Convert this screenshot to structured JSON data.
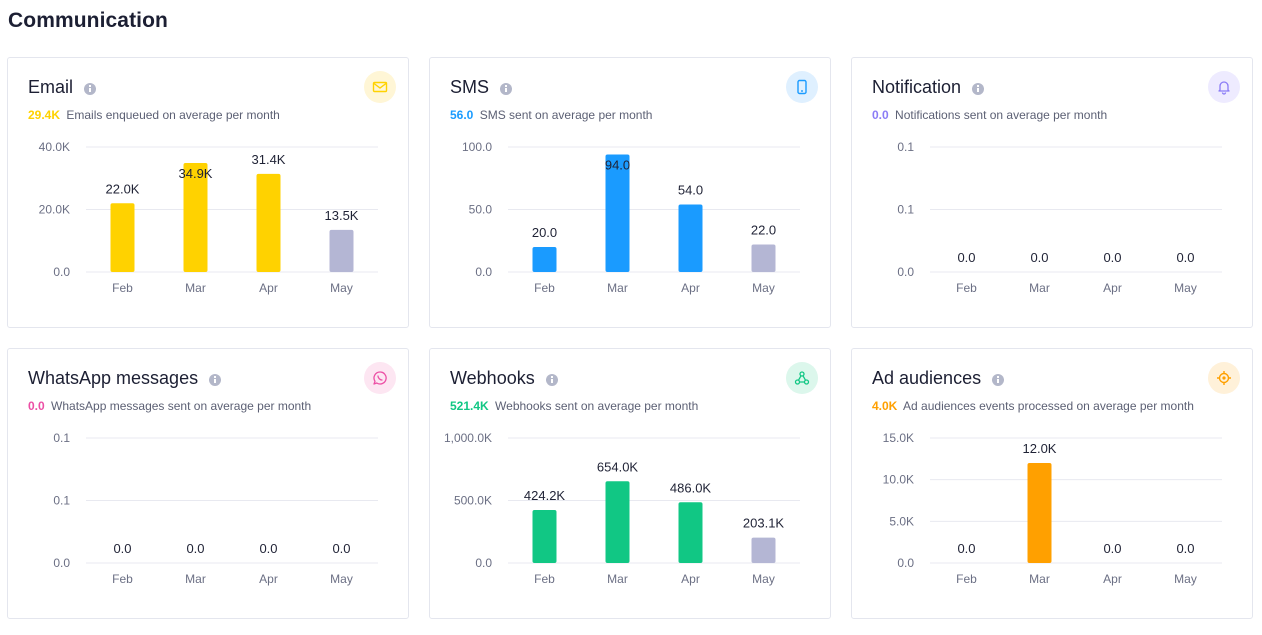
{
  "page": {
    "title": "Communication"
  },
  "cards": [
    {
      "title": "Email",
      "icon": "envelope-icon",
      "accent": "#ffd200",
      "badge_bg": "#fff6d6",
      "summary_value": "29.4K",
      "summary_text": "Emails enqueued on average per month",
      "chart_data": {
        "type": "bar",
        "categories": [
          "Feb",
          "Mar",
          "Apr",
          "May"
        ],
        "values": [
          22000,
          34900,
          31400,
          13500
        ],
        "labels": [
          "22.0K",
          "34.9K",
          "31.4K",
          "13.5K"
        ],
        "ylim": [
          0,
          40000
        ],
        "yticks": [
          "0.0",
          "20.0K",
          "40.0K"
        ],
        "bar_colors": [
          "#ffd200",
          "#ffd200",
          "#ffd200",
          "#b4b6d4"
        ]
      }
    },
    {
      "title": "SMS",
      "icon": "mobile-phone-icon",
      "accent": "#1a9bff",
      "badge_bg": "#dff0ff",
      "summary_value": "56.0",
      "summary_text": "SMS sent on average per month",
      "chart_data": {
        "type": "bar",
        "categories": [
          "Feb",
          "Mar",
          "Apr",
          "May"
        ],
        "values": [
          20,
          94,
          54,
          22
        ],
        "labels": [
          "20.0",
          "94.0",
          "54.0",
          "22.0"
        ],
        "ylim": [
          0,
          100
        ],
        "yticks": [
          "0.0",
          "50.0",
          "100.0"
        ],
        "bar_colors": [
          "#1a9bff",
          "#1a9bff",
          "#1a9bff",
          "#b4b6d4"
        ]
      }
    },
    {
      "title": "Notification",
      "icon": "bell-icon",
      "accent": "#8b7cf6",
      "badge_bg": "#eeebff",
      "summary_value": "0.0",
      "summary_text": "Notifications sent on average per month",
      "chart_data": {
        "type": "bar",
        "categories": [
          "Feb",
          "Mar",
          "Apr",
          "May"
        ],
        "values": [
          0,
          0,
          0,
          0
        ],
        "labels": [
          "0.0",
          "0.0",
          "0.0",
          "0.0"
        ],
        "ylim": [
          0,
          0.1
        ],
        "yticks": [
          "0.0",
          "0.1",
          "0.1"
        ],
        "bar_colors": [
          "#8b7cf6",
          "#8b7cf6",
          "#8b7cf6",
          "#b4b6d4"
        ]
      }
    },
    {
      "title": "WhatsApp messages",
      "icon": "whatsapp-icon",
      "accent": "#ec4fa5",
      "badge_bg": "#fde6f2",
      "summary_value": "0.0",
      "summary_text": "WhatsApp messages sent on average per month",
      "chart_data": {
        "type": "bar",
        "categories": [
          "Feb",
          "Mar",
          "Apr",
          "May"
        ],
        "values": [
          0,
          0,
          0,
          0
        ],
        "labels": [
          "0.0",
          "0.0",
          "0.0",
          "0.0"
        ],
        "ylim": [
          0,
          0.1
        ],
        "yticks": [
          "0.0",
          "0.1",
          "0.1"
        ],
        "bar_colors": [
          "#ec4fa5",
          "#ec4fa5",
          "#ec4fa5",
          "#b4b6d4"
        ]
      }
    },
    {
      "title": "Webhooks",
      "icon": "webhook-icon",
      "accent": "#11c784",
      "badge_bg": "#dcf7ec",
      "summary_value": "521.4K",
      "summary_text": "Webhooks sent on average per month",
      "chart_data": {
        "type": "bar",
        "categories": [
          "Feb",
          "Mar",
          "Apr",
          "May"
        ],
        "values": [
          424200,
          654000,
          486000,
          203100
        ],
        "labels": [
          "424.2K",
          "654.0K",
          "486.0K",
          "203.1K"
        ],
        "ylim": [
          0,
          1000000
        ],
        "yticks": [
          "0.0",
          "500.0K",
          "1,000.0K"
        ],
        "bar_colors": [
          "#11c784",
          "#11c784",
          "#11c784",
          "#b4b6d4"
        ]
      }
    },
    {
      "title": "Ad audiences",
      "icon": "target-icon",
      "accent": "#ffa000",
      "badge_bg": "#fff1d9",
      "summary_value": "4.0K",
      "summary_text": "Ad audiences events processed on average per month",
      "chart_data": {
        "type": "bar",
        "categories": [
          "Feb",
          "Mar",
          "Apr",
          "May"
        ],
        "values": [
          0,
          12000,
          0,
          0
        ],
        "labels": [
          "0.0",
          "12.0K",
          "0.0",
          "0.0"
        ],
        "ylim": [
          0,
          15000
        ],
        "yticks": [
          "0.0",
          "5.0K",
          "10.0K",
          "15.0K"
        ],
        "bar_colors": [
          "#ffa000",
          "#ffa000",
          "#ffa000",
          "#b4b6d4"
        ]
      }
    }
  ]
}
